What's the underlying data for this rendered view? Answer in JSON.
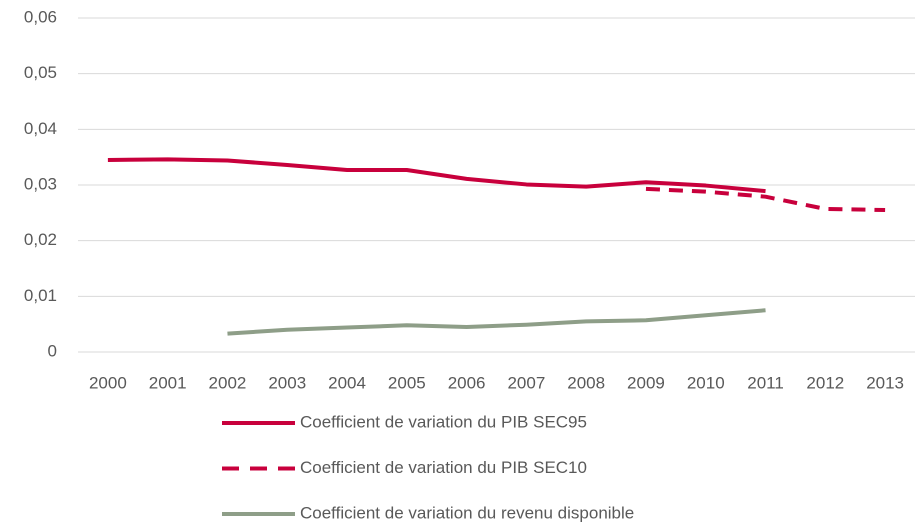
{
  "chart_data": {
    "type": "line",
    "categories": [
      "2000",
      "2001",
      "2002",
      "2003",
      "2004",
      "2005",
      "2006",
      "2007",
      "2008",
      "2009",
      "2010",
      "2011",
      "2012",
      "2013"
    ],
    "series": [
      {
        "name": "Coefficient de variation du PIB SEC95",
        "color": "#c8003c",
        "style": "solid",
        "values": [
          0.0345,
          0.0346,
          0.0344,
          0.0336,
          0.0327,
          0.0327,
          0.0311,
          0.0301,
          0.0297,
          0.0305,
          0.0299,
          0.0289,
          null,
          null
        ]
      },
      {
        "name": "Coefficient de variation du PIB SEC10",
        "color": "#c8003c",
        "style": "dashed",
        "values": [
          null,
          null,
          null,
          null,
          null,
          null,
          null,
          null,
          null,
          0.0293,
          0.0288,
          0.0279,
          0.0257,
          0.0255
        ]
      },
      {
        "name": "Coefficient de variation du revenu disponible",
        "color": "#8e9e88",
        "style": "solid",
        "values": [
          null,
          null,
          0.0033,
          0.004,
          0.0044,
          0.0048,
          0.0045,
          0.0049,
          0.0055,
          0.0057,
          0.0066,
          0.0075,
          null,
          null
        ]
      }
    ],
    "ylim": [
      0,
      0.06
    ],
    "yticks": [
      0,
      {
        "value": 0.01,
        "label": "0,01"
      },
      {
        "value": 0.02,
        "label": "0,02"
      },
      {
        "value": 0.03,
        "label": "0,03"
      },
      {
        "value": 0.04,
        "label": "0,04"
      },
      {
        "value": 0.05,
        "label": "0,05"
      },
      {
        "value": 0.06,
        "label": "0,06"
      }
    ],
    "grid": true,
    "legend": "bottom"
  }
}
